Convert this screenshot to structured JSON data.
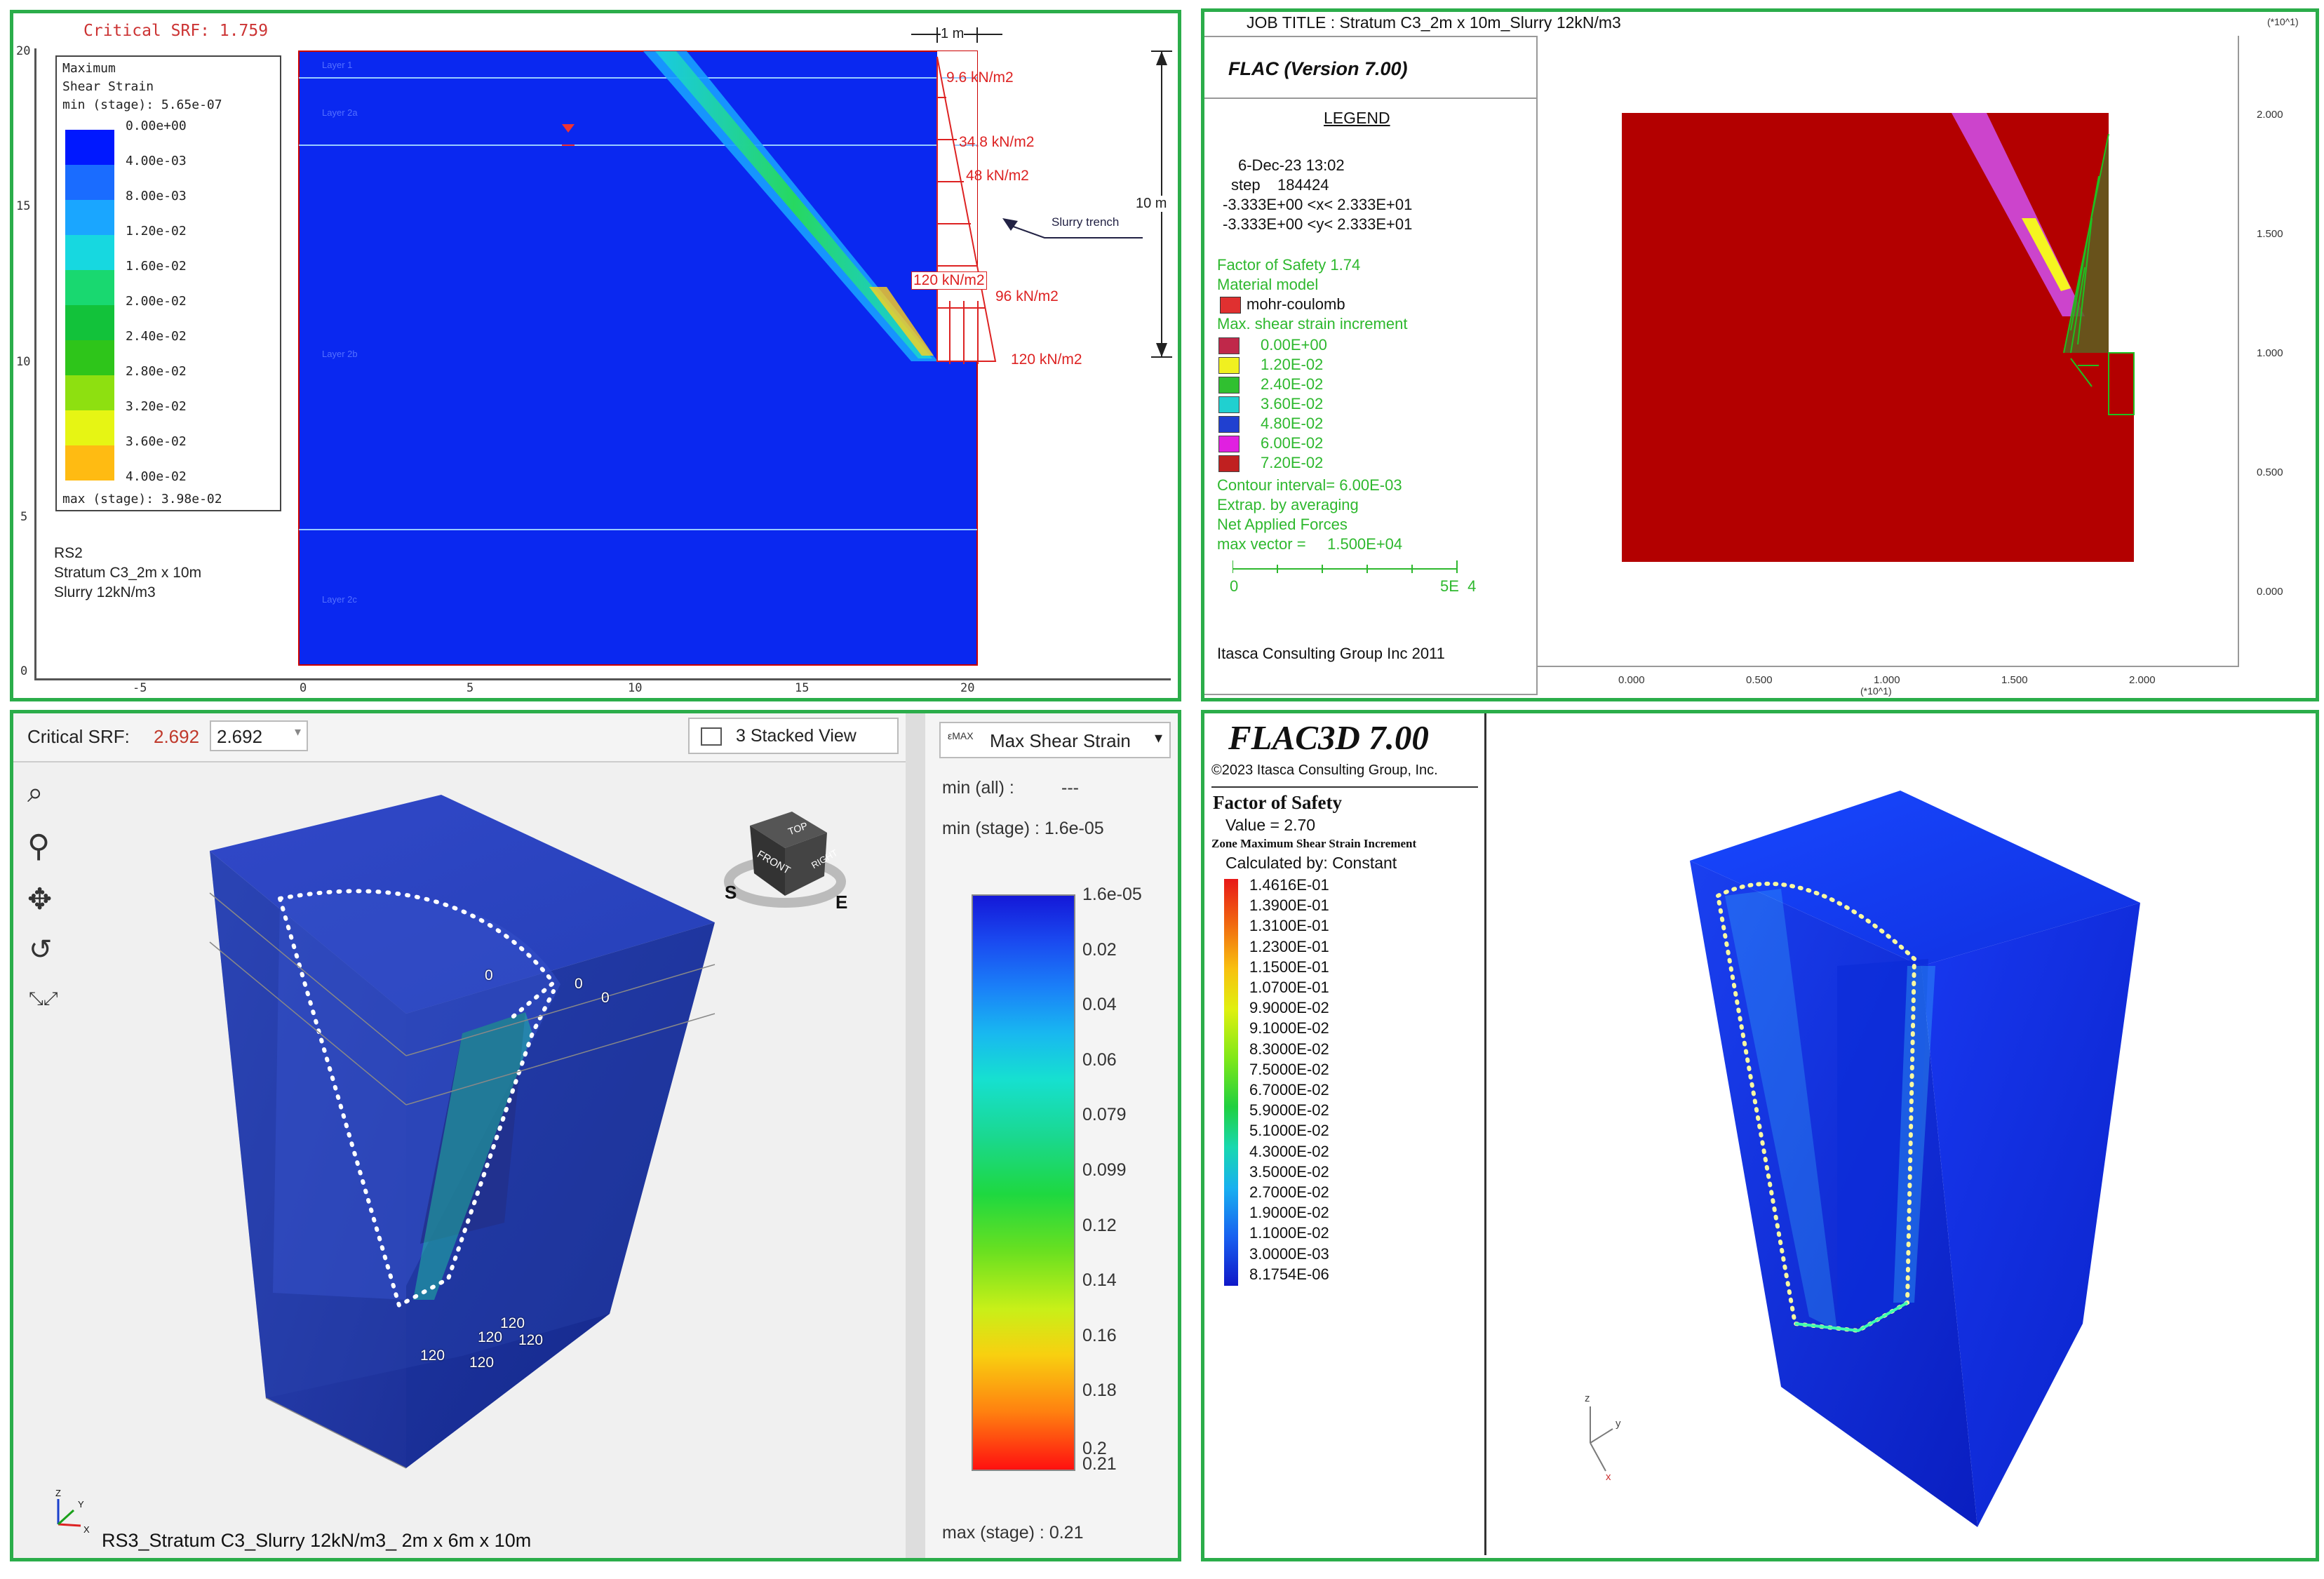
{
  "p1": {
    "title": "Critical SRF: 1.759",
    "legend": {
      "title1": "Maximum",
      "title2": "Shear Strain",
      "min_label": "min (stage): 5.65e-07",
      "max_label": "max (stage): 3.98e-02",
      "values": [
        "0.00e+00",
        "4.00e-03",
        "8.00e-03",
        "1.20e-02",
        "1.60e-02",
        "2.00e-02",
        "2.40e-02",
        "2.80e-02",
        "3.20e-02",
        "3.60e-02",
        "4.00e-02"
      ],
      "colors": [
        "#0018ff",
        "#1a6cff",
        "#1aa6ff",
        "#17d8e0",
        "#19d870",
        "#12c23a",
        "#2ec51a",
        "#8ee010",
        "#e6f514",
        "#ffbb12",
        "#ff1a1a"
      ]
    },
    "footer": [
      "RS2",
      "Stratum C3_2m x 10m",
      "Slurry 12kN/m3"
    ],
    "layers": [
      "Layer 1",
      "Layer 2a",
      "Layer 2b",
      "Layer 2c"
    ],
    "loads": [
      "9.6 kN/m2",
      "34.8 kN/m2",
      "48 kN/m2",
      "120 kN/m2",
      "96 kN/m2",
      "120 kN/m2"
    ],
    "dim_width": "1 m",
    "dim_height": "10 m",
    "trench_label": "Slurry trench",
    "xticks": [
      "-5",
      "0",
      "5",
      "10",
      "15",
      "20"
    ],
    "yticks": [
      "20",
      "15",
      "10",
      "5",
      "0"
    ]
  },
  "p2": {
    "job_title": "JOB TITLE : Stratum C3_2m x 10m_Slurry 12kN/m3",
    "version": "FLAC (Version 7.00)",
    "legend_title": "LEGEND",
    "date": "6-Dec-23 13:02",
    "step": "step    184424",
    "xrange": "-3.333E+00 <x< 2.333E+01",
    "yrange": "-3.333E+00 <y< 2.333E+01",
    "fos": "Factor of Safety  1.74",
    "material_title": "Material model",
    "material": "mohr-coulomb",
    "strain_title": "Max. shear strain increment",
    "strain_values": [
      "0.00E+00",
      "1.20E-02",
      "2.40E-02",
      "3.60E-02",
      "4.80E-02",
      "6.00E-02",
      "7.20E-02"
    ],
    "strain_colors": [
      "#c0284a",
      "#f0f020",
      "#30c030",
      "#20d0d0",
      "#2040d0",
      "#e020e0",
      "#c02020"
    ],
    "contour": "Contour interval= 6.00E-03",
    "extrap": "Extrap. by averaging",
    "forces": "Net Applied Forces",
    "maxvec": "max vector =     1.500E+04",
    "scale_left": "0",
    "scale_right": "5E  4",
    "company": "Itasca Consulting Group Inc 2011",
    "right_ticks": [
      "2.000",
      "1.500",
      "1.000",
      "0.500",
      "0.000"
    ],
    "bottom_ticks": [
      "0.000",
      "0.500",
      "1.000",
      "1.500",
      "2.000"
    ],
    "exp_top": "(*10^1)",
    "exp_bottom": "(*10^1)"
  },
  "p3": {
    "srf_label": "Critical SRF:",
    "srf_value": "2.692",
    "srf_input": "2.692",
    "view_label": "3 Stacked View",
    "strain_dropdown": "Max Shear Strain",
    "emax": "εMAX",
    "min_all": "min (all) :",
    "min_all_val": "---",
    "min_stage": "min (stage) : 1.6e-05",
    "max_stage": "max (stage) : 0.21",
    "scale_labels": [
      "1.6e-05",
      "0.02",
      "0.04",
      "0.06",
      "0.079",
      "0.099",
      "0.12",
      "0.14",
      "0.16",
      "0.18",
      "0.2",
      "0.21"
    ],
    "footer": "RS3_Stratum C3_Slurry 12kN/m3_ 2m x 6m x 10m",
    "cube_labels": [
      "TOP",
      "FRONT",
      "RIGHT"
    ],
    "compass": [
      "S",
      "E"
    ],
    "load_labels": [
      "0",
      "0",
      "0",
      "120",
      "120",
      "120",
      "120",
      "120"
    ],
    "axes": [
      "Z",
      "Y",
      "X"
    ]
  },
  "p4": {
    "title": "FLAC3D 7.00",
    "copyright": "©2023 Itasca Consulting Group, Inc.",
    "fos_title": "Factor of Safety",
    "fos_value": "Value = 2.70",
    "zone_title": "Zone Maximum Shear Strain Increment",
    "calc": "Calculated by: Constant",
    "values": [
      "1.4616E-01",
      "1.3900E-01",
      "1.3100E-01",
      "1.2300E-01",
      "1.1500E-01",
      "1.0700E-01",
      "9.9000E-02",
      "9.1000E-02",
      "8.3000E-02",
      "7.5000E-02",
      "6.7000E-02",
      "5.9000E-02",
      "5.1000E-02",
      "4.3000E-02",
      "3.5000E-02",
      "2.7000E-02",
      "1.9000E-02",
      "1.1000E-02",
      "3.0000E-03",
      "8.1754E-06"
    ],
    "axes": [
      "z",
      "y",
      "x"
    ]
  }
}
